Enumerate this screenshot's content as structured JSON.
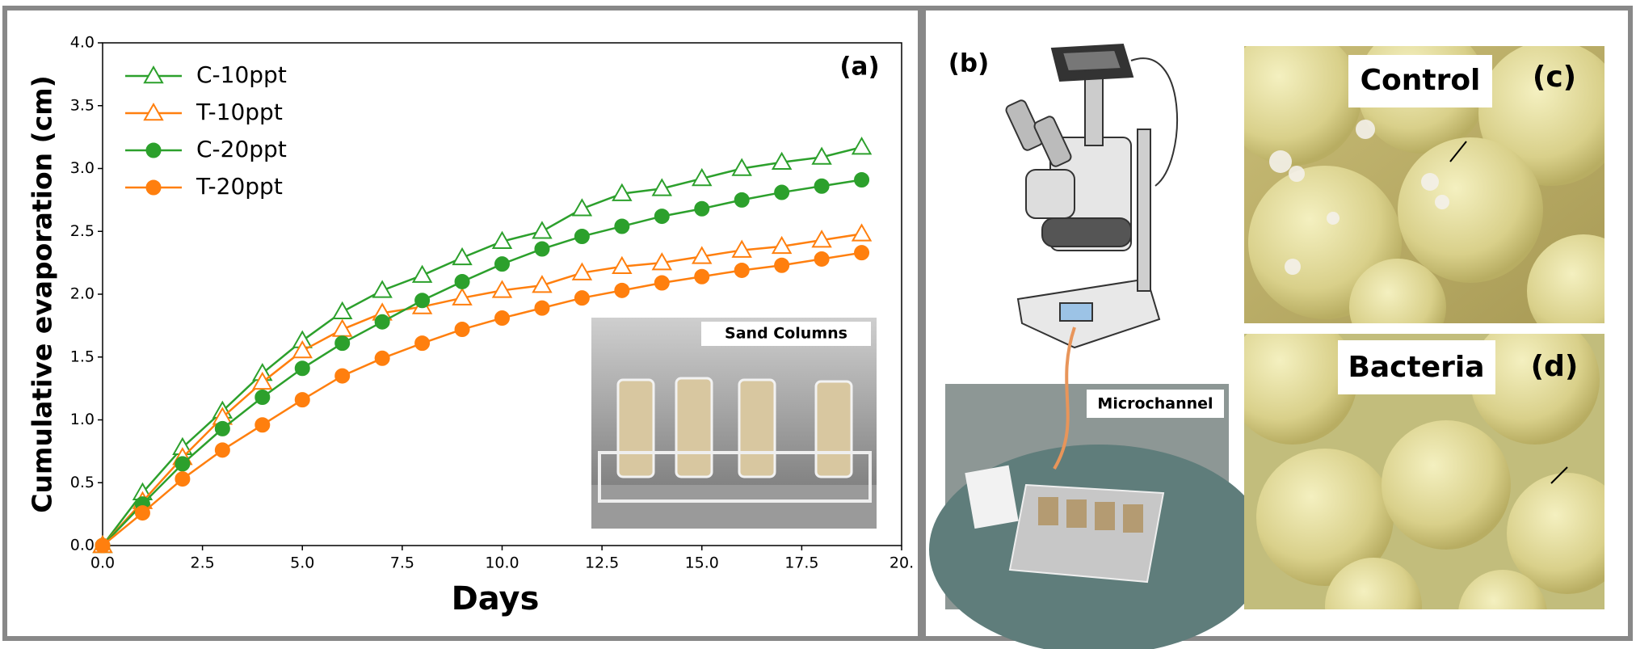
{
  "chart_data": {
    "type": "line",
    "annotation": "(a)",
    "xlabel": "Days",
    "ylabel": "Cumulative evaporation (cm)",
    "inset_label": "Sand Columns",
    "x": [
      0,
      1,
      2,
      3,
      4,
      5,
      6,
      7,
      8,
      9,
      10,
      11,
      12,
      13,
      14,
      15,
      16,
      17,
      18,
      19
    ],
    "series": [
      {
        "name": "C-10ppt",
        "color": "#2ca02c",
        "marker": "triangle-open",
        "values": [
          0,
          0.42,
          0.78,
          1.07,
          1.37,
          1.63,
          1.86,
          2.03,
          2.15,
          2.29,
          2.42,
          2.5,
          2.68,
          2.8,
          2.84,
          2.92,
          3.0,
          3.05,
          3.09,
          3.17
        ]
      },
      {
        "name": "T-10ppt",
        "color": "#ff7f0e",
        "marker": "triangle-open",
        "values": [
          0,
          0.35,
          0.7,
          1.02,
          1.3,
          1.55,
          1.72,
          1.85,
          1.9,
          1.97,
          2.03,
          2.07,
          2.17,
          2.22,
          2.25,
          2.3,
          2.35,
          2.38,
          2.43,
          2.48
        ]
      },
      {
        "name": "C-20ppt",
        "color": "#2ca02c",
        "marker": "circle",
        "values": [
          0,
          0.33,
          0.65,
          0.93,
          1.18,
          1.41,
          1.61,
          1.78,
          1.95,
          2.1,
          2.24,
          2.36,
          2.46,
          2.54,
          2.62,
          2.68,
          2.75,
          2.81,
          2.86,
          2.91
        ]
      },
      {
        "name": "T-20ppt",
        "color": "#ff7f0e",
        "marker": "circle",
        "values": [
          0,
          0.26,
          0.53,
          0.76,
          0.96,
          1.16,
          1.35,
          1.49,
          1.61,
          1.72,
          1.81,
          1.89,
          1.97,
          2.03,
          2.09,
          2.14,
          2.19,
          2.23,
          2.28,
          2.33
        ]
      }
    ],
    "xlim": [
      0,
      20
    ],
    "xticks": [
      {
        "value": 0,
        "label": "0.0"
      },
      {
        "value": 2.5,
        "label": "2.5"
      },
      {
        "value": 5,
        "label": "5.0"
      },
      {
        "value": 7.5,
        "label": "7.5"
      },
      {
        "value": 10,
        "label": "10.0"
      },
      {
        "value": 12.5,
        "label": "12.5"
      },
      {
        "value": 15,
        "label": "15.0"
      },
      {
        "value": 17.5,
        "label": "17.5"
      },
      {
        "value": 20,
        "label": "20."
      }
    ],
    "ylim": [
      0,
      4
    ],
    "yticks": [
      {
        "value": 0,
        "label": "0.0"
      },
      {
        "value": 0.5,
        "label": "0.5"
      },
      {
        "value": 1,
        "label": "1.0"
      },
      {
        "value": 1.5,
        "label": "1.5"
      },
      {
        "value": 2,
        "label": "2.0"
      },
      {
        "value": 2.5,
        "label": "2.5"
      },
      {
        "value": 3,
        "label": "3.0"
      },
      {
        "value": 3.5,
        "label": "3.5"
      },
      {
        "value": 4,
        "label": "4.0"
      }
    ],
    "grid": false,
    "legend": "upper left"
  },
  "panels": {
    "b": {
      "label": "(b)",
      "caption": "Microchannel"
    },
    "c": {
      "label": "(c)",
      "caption": "Control"
    },
    "d": {
      "label": "(d)",
      "caption": "Bacteria"
    }
  }
}
